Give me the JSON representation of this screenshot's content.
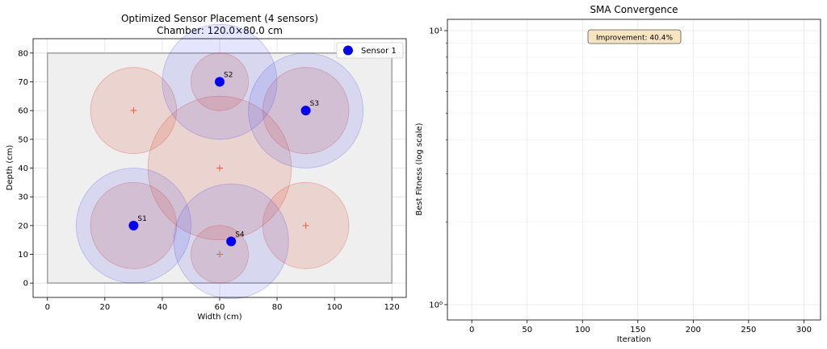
{
  "chart_data": [
    {
      "type": "scatter",
      "title": "Optimized Sensor Placement (4 sensors)",
      "subtitle": "Chamber: 120.0×80.0 cm",
      "xlabel": "Width (cm)",
      "ylabel": "Depth (cm)",
      "xlim": [
        -5,
        125
      ],
      "ylim": [
        -5,
        85
      ],
      "xticks": [
        0,
        20,
        40,
        60,
        80,
        100,
        120
      ],
      "yticks": [
        0,
        10,
        20,
        30,
        40,
        50,
        60,
        70,
        80
      ],
      "chamber": {
        "width": 120,
        "depth": 80
      },
      "grid": true,
      "legend_position": "top-right",
      "legend": [
        "Sensor 1"
      ],
      "sensors": [
        {
          "label": "S1",
          "x": 30,
          "y": 20,
          "r": 20
        },
        {
          "label": "S2",
          "x": 60,
          "y": 70,
          "r": 20
        },
        {
          "label": "S3",
          "x": 90,
          "y": 60,
          "r": 20
        },
        {
          "label": "S4",
          "x": 64,
          "y": 14.5,
          "r": 20
        }
      ],
      "targets": [
        {
          "x": 30,
          "y": 60,
          "r": 15
        },
        {
          "x": 60,
          "y": 40,
          "r": 25
        },
        {
          "x": 90,
          "y": 20,
          "r": 15
        },
        {
          "x": 60,
          "y": 10,
          "r": 10
        },
        {
          "x": 60,
          "y": 70,
          "r": 10
        },
        {
          "x": 90,
          "y": 60,
          "r": 15
        },
        {
          "x": 30,
          "y": 20,
          "r": 15
        }
      ],
      "colors": {
        "sensor": "#0000ee",
        "sensor_coverage": "#4444ee",
        "target": "#e8603c",
        "target_region": "#d9472b",
        "chamber_fill": "#efefef",
        "chamber_edge": "#a6a6a6"
      }
    },
    {
      "type": "line",
      "title": "SMA Convergence",
      "xlabel": "Iteration",
      "ylabel": "Best Fitness (log scale)",
      "xlim": [
        -22,
        315
      ],
      "xticks": [
        0,
        50,
        100,
        150,
        200,
        250,
        300
      ],
      "yscale": "log",
      "yticks": [
        1,
        10
      ],
      "ytick_labels": [
        "10⁰",
        "10¹"
      ],
      "grid": true,
      "series": [],
      "annotation": "Improvement: 40.4%"
    }
  ]
}
